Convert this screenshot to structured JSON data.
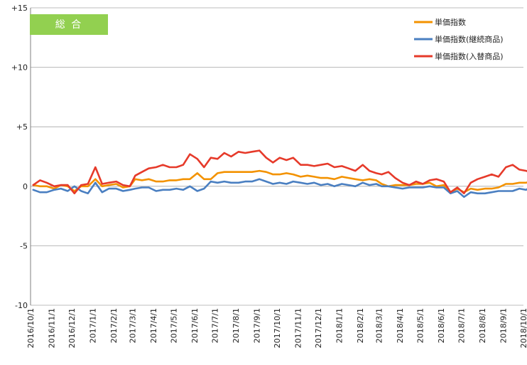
{
  "chart_data": {
    "type": "line",
    "badge": "総 合",
    "colors": {
      "badge_bg": "#92d050",
      "badge_text": "#ffffff"
    },
    "ylim": [
      -10,
      15
    ],
    "y_ticks": [
      15,
      10,
      5,
      0,
      -5,
      -10
    ],
    "y_tick_labels": [
      "+15",
      "+10",
      "+5",
      "0",
      "-5",
      "-10"
    ],
    "grid": "horizontal major at every 5",
    "legend_position": "top-right",
    "x_start": "2016-10-01",
    "x_tick_labels": [
      "2016/10/1",
      "2016/11/1",
      "2016/12/1",
      "2017/1/1",
      "2017/2/1",
      "2017/3/1",
      "2017/4/1",
      "2017/5/1",
      "2017/6/1",
      "2017/7/1",
      "2017/8/1",
      "2017/9/1",
      "2017/10/1",
      "2017/11/1",
      "2017/12/1",
      "2018/1/1",
      "2018/2/1",
      "2018/3/1",
      "2018/4/1",
      "2018/5/1",
      "2018/6/1",
      "2018/7/1",
      "2018/8/1",
      "2018/9/1",
      "2018/10/1"
    ],
    "series": [
      {
        "name": "単価指数",
        "color": "#f39200",
        "x": [
          "2016-10-05",
          "2016-10-15",
          "2016-10-25",
          "2016-11-05",
          "2016-11-15",
          "2016-11-25",
          "2016-12-05",
          "2016-12-15",
          "2016-12-25",
          "2017-01-05",
          "2017-01-15",
          "2017-01-25",
          "2017-02-05",
          "2017-02-15",
          "2017-02-25",
          "2017-03-05",
          "2017-03-15",
          "2017-03-25",
          "2017-04-05",
          "2017-04-15",
          "2017-04-25",
          "2017-05-05",
          "2017-05-15",
          "2017-05-25",
          "2017-06-05",
          "2017-06-15",
          "2017-06-25",
          "2017-07-05",
          "2017-07-15",
          "2017-07-25",
          "2017-08-05",
          "2017-08-15",
          "2017-08-25",
          "2017-09-05",
          "2017-09-15",
          "2017-09-25",
          "2017-10-05",
          "2017-10-15",
          "2017-10-25",
          "2017-11-05",
          "2017-11-15",
          "2017-11-25",
          "2017-12-05",
          "2017-12-15",
          "2017-12-25",
          "2018-01-05",
          "2018-01-15",
          "2018-01-25",
          "2018-02-05",
          "2018-02-15",
          "2018-02-25",
          "2018-03-05",
          "2018-03-15",
          "2018-03-25",
          "2018-04-05",
          "2018-04-15",
          "2018-04-25",
          "2018-05-05",
          "2018-05-15",
          "2018-05-25",
          "2018-06-05",
          "2018-06-15",
          "2018-06-25",
          "2018-07-05",
          "2018-07-15",
          "2018-07-25",
          "2018-08-05",
          "2018-08-15",
          "2018-08-25",
          "2018-09-05",
          "2018-09-15",
          "2018-09-25",
          "2018-10-05",
          "2018-10-15",
          "2018-10-25"
        ],
        "values": [
          0.1,
          0.0,
          0.0,
          -0.2,
          0.1,
          0.0,
          -0.4,
          0.0,
          0.0,
          0.6,
          0.0,
          0.1,
          0.2,
          -0.1,
          0.0,
          0.6,
          0.5,
          0.6,
          0.4,
          0.4,
          0.5,
          0.5,
          0.6,
          0.6,
          1.1,
          0.6,
          0.6,
          1.1,
          1.2,
          1.2,
          1.2,
          1.2,
          1.2,
          1.3,
          1.2,
          1.0,
          1.0,
          1.1,
          1.0,
          0.8,
          0.9,
          0.8,
          0.7,
          0.7,
          0.6,
          0.8,
          0.7,
          0.6,
          0.5,
          0.6,
          0.5,
          0.2,
          0.0,
          0.1,
          0.1,
          0.1,
          0.2,
          0.2,
          0.3,
          0.0,
          0.1,
          -0.5,
          -0.2,
          -0.5,
          -0.2,
          -0.3,
          -0.2,
          -0.2,
          -0.1,
          0.2,
          0.2,
          0.3,
          0.3,
          0.5,
          0.8
        ]
      },
      {
        "name": "単価指数(継続商品)",
        "color": "#4a7fc1",
        "x": [
          "2016-10-05",
          "2016-10-15",
          "2016-10-25",
          "2016-11-05",
          "2016-11-15",
          "2016-11-25",
          "2016-12-05",
          "2016-12-15",
          "2016-12-25",
          "2017-01-05",
          "2017-01-15",
          "2017-01-25",
          "2017-02-05",
          "2017-02-15",
          "2017-02-25",
          "2017-03-05",
          "2017-03-15",
          "2017-03-25",
          "2017-04-05",
          "2017-04-15",
          "2017-04-25",
          "2017-05-05",
          "2017-05-15",
          "2017-05-25",
          "2017-06-05",
          "2017-06-15",
          "2017-06-25",
          "2017-07-05",
          "2017-07-15",
          "2017-07-25",
          "2017-08-05",
          "2017-08-15",
          "2017-08-25",
          "2017-09-05",
          "2017-09-15",
          "2017-09-25",
          "2017-10-05",
          "2017-10-15",
          "2017-10-25",
          "2017-11-05",
          "2017-11-15",
          "2017-11-25",
          "2017-12-05",
          "2017-12-15",
          "2017-12-25",
          "2018-01-05",
          "2018-01-15",
          "2018-01-25",
          "2018-02-05",
          "2018-02-15",
          "2018-02-25",
          "2018-03-05",
          "2018-03-15",
          "2018-03-25",
          "2018-04-05",
          "2018-04-15",
          "2018-04-25",
          "2018-05-05",
          "2018-05-15",
          "2018-05-25",
          "2018-06-05",
          "2018-06-15",
          "2018-06-25",
          "2018-07-05",
          "2018-07-15",
          "2018-07-25",
          "2018-08-05",
          "2018-08-15",
          "2018-08-25",
          "2018-09-05",
          "2018-09-15",
          "2018-09-25",
          "2018-10-05",
          "2018-10-15",
          "2018-10-25"
        ],
        "values": [
          -0.3,
          -0.5,
          -0.5,
          -0.3,
          -0.2,
          -0.4,
          0.0,
          -0.4,
          -0.6,
          0.3,
          -0.5,
          -0.2,
          -0.2,
          -0.4,
          -0.3,
          -0.2,
          -0.1,
          -0.1,
          -0.4,
          -0.3,
          -0.3,
          -0.2,
          -0.3,
          0.0,
          -0.4,
          -0.2,
          0.4,
          0.3,
          0.4,
          0.3,
          0.3,
          0.4,
          0.4,
          0.6,
          0.4,
          0.2,
          0.3,
          0.2,
          0.4,
          0.3,
          0.2,
          0.3,
          0.1,
          0.2,
          0.0,
          0.2,
          0.1,
          0.0,
          0.3,
          0.1,
          0.2,
          0.0,
          0.0,
          -0.1,
          -0.2,
          -0.1,
          -0.1,
          -0.1,
          0.0,
          -0.1,
          -0.1,
          -0.6,
          -0.4,
          -0.9,
          -0.5,
          -0.6,
          -0.6,
          -0.5,
          -0.4,
          -0.4,
          -0.4,
          -0.2,
          -0.3,
          0.1,
          0.6
        ]
      },
      {
        "name": "単価指数(入替商品)",
        "color": "#e63a2a",
        "x": [
          "2016-10-05",
          "2016-10-15",
          "2016-10-25",
          "2016-11-05",
          "2016-11-15",
          "2016-11-25",
          "2016-12-05",
          "2016-12-15",
          "2016-12-25",
          "2017-01-05",
          "2017-01-15",
          "2017-01-25",
          "2017-02-05",
          "2017-02-15",
          "2017-02-25",
          "2017-03-05",
          "2017-03-15",
          "2017-03-25",
          "2017-04-05",
          "2017-04-15",
          "2017-04-25",
          "2017-05-05",
          "2017-05-15",
          "2017-05-25",
          "2017-06-05",
          "2017-06-15",
          "2017-06-25",
          "2017-07-05",
          "2017-07-15",
          "2017-07-25",
          "2017-08-05",
          "2017-08-15",
          "2017-08-25",
          "2017-09-05",
          "2017-09-15",
          "2017-09-25",
          "2017-10-05",
          "2017-10-15",
          "2017-10-25",
          "2017-11-05",
          "2017-11-15",
          "2017-11-25",
          "2017-12-05",
          "2017-12-15",
          "2017-12-25",
          "2018-01-05",
          "2018-01-15",
          "2018-01-25",
          "2018-02-05",
          "2018-02-15",
          "2018-02-25",
          "2018-03-05",
          "2018-03-15",
          "2018-03-25",
          "2018-04-05",
          "2018-04-15",
          "2018-04-25",
          "2018-05-05",
          "2018-05-15",
          "2018-05-25",
          "2018-06-05",
          "2018-06-15",
          "2018-06-25",
          "2018-07-05",
          "2018-07-15",
          "2018-07-25",
          "2018-08-05",
          "2018-08-15",
          "2018-08-25",
          "2018-09-05",
          "2018-09-15",
          "2018-09-25",
          "2018-10-05",
          "2018-10-15",
          "2018-10-25"
        ],
        "values": [
          0.1,
          0.5,
          0.3,
          0.0,
          0.1,
          0.1,
          -0.6,
          0.1,
          0.2,
          1.6,
          0.2,
          0.3,
          0.4,
          0.1,
          0.0,
          0.9,
          1.2,
          1.5,
          1.6,
          1.8,
          1.6,
          1.6,
          1.8,
          2.7,
          2.3,
          1.6,
          2.4,
          2.3,
          2.8,
          2.5,
          2.9,
          2.8,
          2.9,
          3.0,
          2.4,
          2.0,
          2.4,
          2.2,
          2.4,
          1.8,
          1.8,
          1.7,
          1.8,
          1.9,
          1.6,
          1.7,
          1.5,
          1.3,
          1.8,
          1.3,
          1.1,
          1.0,
          1.2,
          0.7,
          0.3,
          0.1,
          0.4,
          0.2,
          0.5,
          0.6,
          0.4,
          -0.5,
          -0.1,
          -0.6,
          0.3,
          0.6,
          0.8,
          1.0,
          0.8,
          1.6,
          1.8,
          1.4,
          1.3,
          1.1,
          1.3
        ]
      }
    ]
  }
}
